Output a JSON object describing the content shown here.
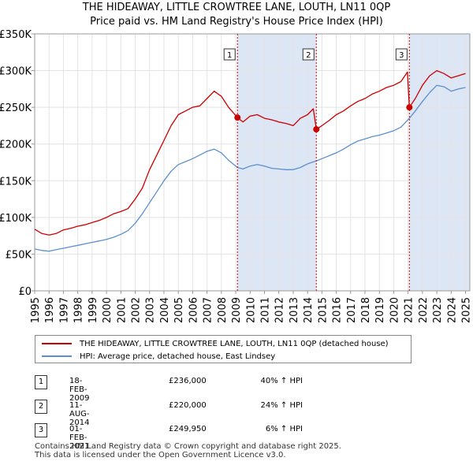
{
  "chart_data": {
    "type": "line",
    "title": "THE HIDEAWAY, LITTLE CROWTREE LANE, LOUTH, LN11 0QP",
    "subtitle": "Price paid vs. HM Land Registry's House Price Index (HPI)",
    "x_ticks": [
      "1995",
      "1996",
      "1997",
      "1998",
      "1999",
      "2000",
      "2001",
      "2002",
      "2003",
      "2004",
      "2005",
      "2006",
      "2007",
      "2008",
      "2009",
      "2010",
      "2011",
      "2012",
      "2013",
      "2014",
      "2015",
      "2016",
      "2017",
      "2018",
      "2019",
      "2020",
      "2021",
      "2022",
      "2023",
      "2024",
      "2025"
    ],
    "y_ticks": [
      "£0",
      "£50K",
      "£100K",
      "£150K",
      "£200K",
      "£250K",
      "£300K",
      "£350K"
    ],
    "xlim": [
      1995,
      2025.3
    ],
    "ylim": [
      0,
      350000
    ],
    "series": [
      {
        "name": "THE HIDEAWAY, LITTLE CROWTREE LANE, LOUTH, LN11 0QP (detached house)",
        "color": "#cc0000",
        "points": [
          [
            1995.0,
            84000
          ],
          [
            1995.5,
            78000
          ],
          [
            1996.0,
            76000
          ],
          [
            1996.5,
            78000
          ],
          [
            1997.0,
            83000
          ],
          [
            1997.5,
            85000
          ],
          [
            1998.0,
            88000
          ],
          [
            1998.5,
            90000
          ],
          [
            1999.0,
            93000
          ],
          [
            1999.5,
            96000
          ],
          [
            2000.0,
            100000
          ],
          [
            2000.5,
            105000
          ],
          [
            2001.0,
            108000
          ],
          [
            2001.5,
            112000
          ],
          [
            2002.0,
            125000
          ],
          [
            2002.5,
            140000
          ],
          [
            2003.0,
            165000
          ],
          [
            2003.5,
            185000
          ],
          [
            2004.0,
            205000
          ],
          [
            2004.5,
            225000
          ],
          [
            2005.0,
            240000
          ],
          [
            2005.5,
            245000
          ],
          [
            2006.0,
            250000
          ],
          [
            2006.5,
            252000
          ],
          [
            2007.0,
            262000
          ],
          [
            2007.5,
            272000
          ],
          [
            2008.0,
            265000
          ],
          [
            2008.5,
            250000
          ],
          [
            2009.12,
            236000
          ],
          [
            2009.5,
            230000
          ],
          [
            2010.0,
            238000
          ],
          [
            2010.5,
            240000
          ],
          [
            2011.0,
            235000
          ],
          [
            2011.5,
            233000
          ],
          [
            2012.0,
            230000
          ],
          [
            2012.5,
            228000
          ],
          [
            2013.0,
            225000
          ],
          [
            2013.5,
            235000
          ],
          [
            2014.0,
            240000
          ],
          [
            2014.4,
            248000
          ],
          [
            2014.61,
            220000
          ],
          [
            2015.0,
            225000
          ],
          [
            2015.5,
            232000
          ],
          [
            2016.0,
            240000
          ],
          [
            2016.5,
            245000
          ],
          [
            2017.0,
            252000
          ],
          [
            2017.5,
            258000
          ],
          [
            2018.0,
            262000
          ],
          [
            2018.5,
            268000
          ],
          [
            2019.0,
            272000
          ],
          [
            2019.5,
            277000
          ],
          [
            2020.0,
            280000
          ],
          [
            2020.5,
            285000
          ],
          [
            2020.95,
            298000
          ],
          [
            2021.09,
            249950
          ],
          [
            2021.5,
            262000
          ],
          [
            2022.0,
            280000
          ],
          [
            2022.5,
            293000
          ],
          [
            2023.0,
            300000
          ],
          [
            2023.5,
            296000
          ],
          [
            2024.0,
            290000
          ],
          [
            2024.5,
            293000
          ],
          [
            2025.0,
            296000
          ]
        ]
      },
      {
        "name": "HPI: Average price, detached house, East Lindsey",
        "color": "#5b8fd0",
        "points": [
          [
            1995.0,
            57000
          ],
          [
            1995.5,
            55000
          ],
          [
            1996.0,
            54000
          ],
          [
            1996.5,
            56000
          ],
          [
            1997.0,
            58000
          ],
          [
            1997.5,
            60000
          ],
          [
            1998.0,
            62000
          ],
          [
            1998.5,
            64000
          ],
          [
            1999.0,
            66000
          ],
          [
            1999.5,
            68000
          ],
          [
            2000.0,
            70000
          ],
          [
            2000.5,
            73000
          ],
          [
            2001.0,
            77000
          ],
          [
            2001.5,
            82000
          ],
          [
            2002.0,
            92000
          ],
          [
            2002.5,
            105000
          ],
          [
            2003.0,
            120000
          ],
          [
            2003.5,
            135000
          ],
          [
            2004.0,
            150000
          ],
          [
            2004.5,
            163000
          ],
          [
            2005.0,
            172000
          ],
          [
            2005.5,
            176000
          ],
          [
            2006.0,
            180000
          ],
          [
            2006.5,
            185000
          ],
          [
            2007.0,
            190000
          ],
          [
            2007.5,
            193000
          ],
          [
            2008.0,
            188000
          ],
          [
            2008.5,
            178000
          ],
          [
            2009.12,
            168000
          ],
          [
            2009.5,
            166000
          ],
          [
            2010.0,
            170000
          ],
          [
            2010.5,
            172000
          ],
          [
            2011.0,
            170000
          ],
          [
            2011.5,
            167000
          ],
          [
            2012.0,
            166000
          ],
          [
            2012.5,
            165000
          ],
          [
            2013.0,
            165000
          ],
          [
            2013.5,
            168000
          ],
          [
            2014.0,
            173000
          ],
          [
            2014.61,
            177000
          ],
          [
            2015.0,
            180000
          ],
          [
            2015.5,
            184000
          ],
          [
            2016.0,
            188000
          ],
          [
            2016.5,
            193000
          ],
          [
            2017.0,
            199000
          ],
          [
            2017.5,
            204000
          ],
          [
            2018.0,
            207000
          ],
          [
            2018.5,
            210000
          ],
          [
            2019.0,
            212000
          ],
          [
            2019.5,
            215000
          ],
          [
            2020.0,
            218000
          ],
          [
            2020.5,
            223000
          ],
          [
            2021.09,
            235000
          ],
          [
            2021.5,
            245000
          ],
          [
            2022.0,
            258000
          ],
          [
            2022.5,
            270000
          ],
          [
            2023.0,
            280000
          ],
          [
            2023.5,
            278000
          ],
          [
            2024.0,
            272000
          ],
          [
            2024.5,
            275000
          ],
          [
            2025.0,
            277000
          ]
        ]
      }
    ],
    "sales": [
      {
        "label": "1",
        "x": 2009.12,
        "price": 236000
      },
      {
        "label": "2",
        "x": 2014.61,
        "price": 220000
      },
      {
        "label": "3",
        "x": 2021.09,
        "price": 249950
      }
    ],
    "shaded_bands": [
      [
        2009.12,
        2014.61
      ],
      [
        2021.09,
        2025.3
      ]
    ],
    "band_color": "#dde6f5"
  },
  "legend": {
    "property": "THE HIDEAWAY, LITTLE CROWTREE LANE, LOUTH, LN11 0QP (detached house)",
    "hpi": "HPI: Average price, detached house, East Lindsey"
  },
  "transactions": [
    {
      "num": "1",
      "date": "18-FEB-2009",
      "price": "£236,000",
      "hpi": "40% ↑ HPI"
    },
    {
      "num": "2",
      "date": "11-AUG-2014",
      "price": "£220,000",
      "hpi": "24% ↑ HPI"
    },
    {
      "num": "3",
      "date": "01-FEB-2021",
      "price": "£249,950",
      "hpi": "6% ↑ HPI"
    }
  ],
  "footer": {
    "line1": "Contains HM Land Registry data © Crown copyright and database right 2025.",
    "line2": "This data is licensed under the Open Government Licence v3.0."
  }
}
